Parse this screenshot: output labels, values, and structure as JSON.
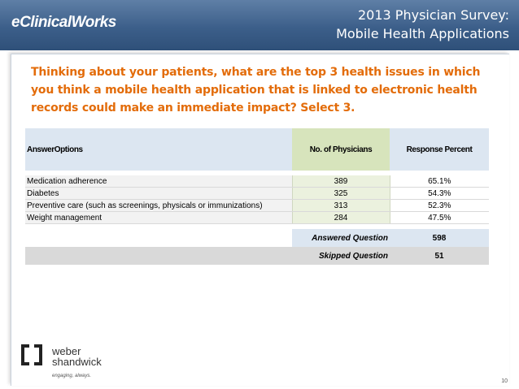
{
  "header": {
    "brand": "eClinicalWorks",
    "title_line1": "2013 Physician Survey:",
    "title_line2": "Mobile Health Applications"
  },
  "question": "Thinking about your patients, what are the top 3 health issues in which you think a mobile health application that is linked to electronic health records could make an immediate impact?  Select 3.",
  "table": {
    "columns": [
      "AnswerOptions",
      "No. of Physicians",
      "Response Percent"
    ],
    "rows": [
      {
        "option": "Medication adherence",
        "count": "389",
        "percent": "65.1%"
      },
      {
        "option": "Diabetes",
        "count": "325",
        "percent": "54.3%"
      },
      {
        "option": "Preventive care (such as screenings, physicals or immunizations)",
        "count": "313",
        "percent": "52.3%"
      },
      {
        "option": "Weight management",
        "count": "284",
        "percent": "47.5%"
      }
    ],
    "answered_label": "Answered  Question",
    "answered_value": "598",
    "skipped_label": "Skipped Question",
    "skipped_value": "51"
  },
  "logo": {
    "name_line1": "weber",
    "name_line2": "shandwick",
    "tagline": "engaging, always."
  },
  "page_number": "10"
}
